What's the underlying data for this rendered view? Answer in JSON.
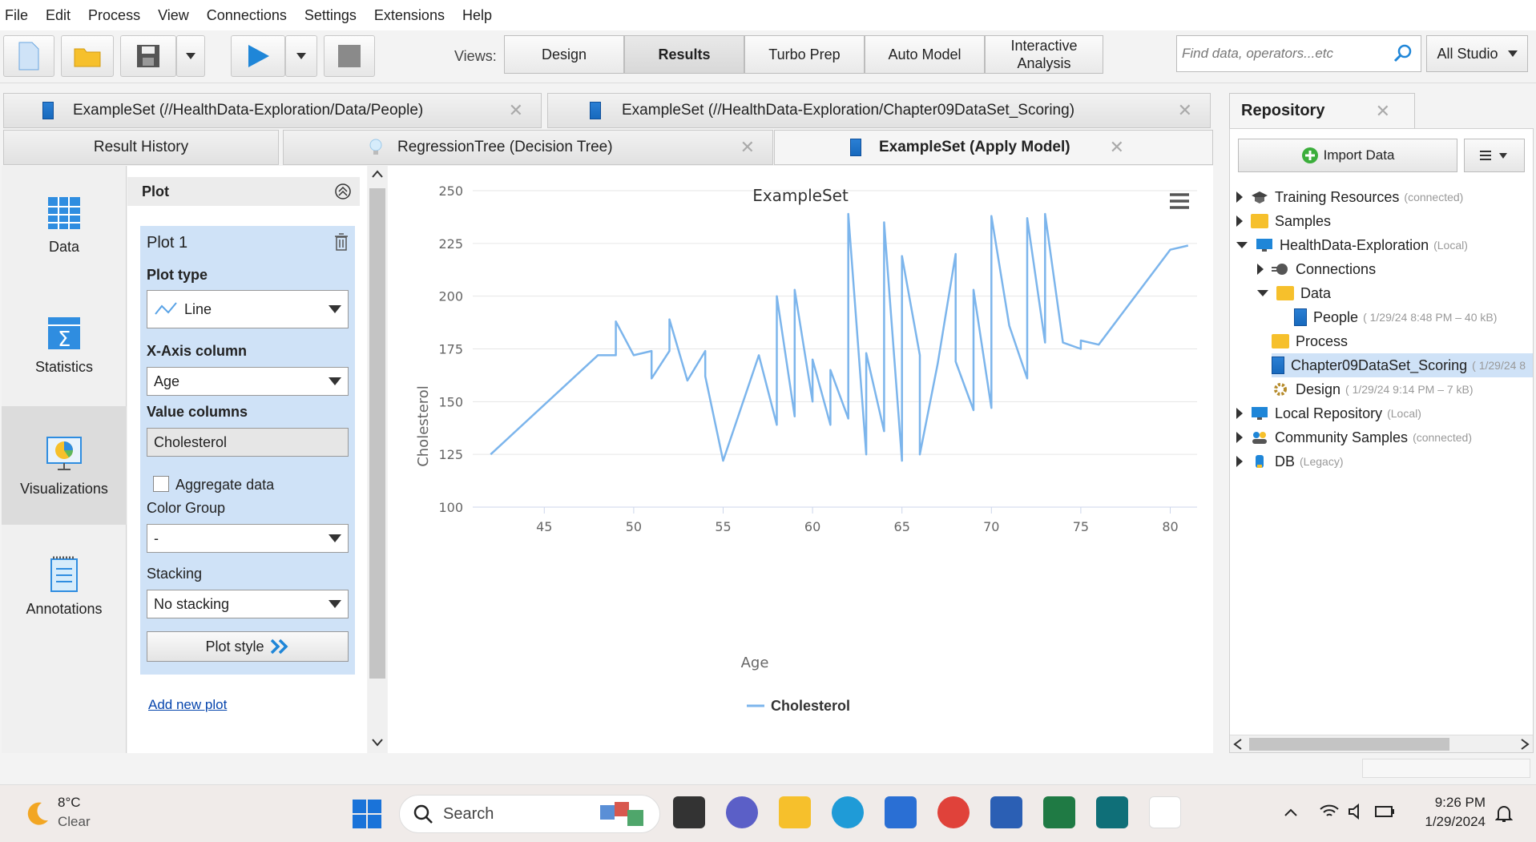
{
  "menu": [
    "File",
    "Edit",
    "Process",
    "View",
    "Connections",
    "Settings",
    "Extensions",
    "Help"
  ],
  "toolbar": {
    "views_label": "Views:",
    "views": [
      {
        "label": "Design"
      },
      {
        "label": "Results"
      },
      {
        "label": "Turbo Prep"
      },
      {
        "label": "Auto Model"
      },
      {
        "label": "Interactive\nAnalysis"
      }
    ],
    "search_placeholder": "Find data, operators...etc",
    "studio_label": "All Studio"
  },
  "tabs_row1": [
    {
      "label": "ExampleSet (//HealthData-Exploration/Data/People)"
    },
    {
      "label": "ExampleSet (//HealthData-Exploration/Chapter09DataSet_Scoring)"
    }
  ],
  "tabs_row2": [
    {
      "label": "Result History"
    },
    {
      "label": "RegressionTree (Decision Tree)"
    },
    {
      "label": "ExampleSet (Apply Model)"
    }
  ],
  "sidebar": [
    "Data",
    "Statistics",
    "Visualizations",
    "Annotations"
  ],
  "plot_panel": {
    "header": "Plot",
    "plot_name": "Plot 1",
    "plot_type_label": "Plot type",
    "plot_type": "Line",
    "x_axis_label": "X-Axis column",
    "x_axis": "Age",
    "value_columns_label": "Value columns",
    "value_column": "Cholesterol",
    "aggregate_label": "Aggregate data",
    "color_group_label": "Color Group",
    "color_group": "-",
    "stacking_label": "Stacking",
    "stacking": "No stacking",
    "plot_style": "Plot style",
    "add_new_plot": "Add new plot"
  },
  "chart_data": {
    "type": "line",
    "title": "ExampleSet",
    "xlabel": "Age",
    "ylabel": "Cholesterol",
    "xlim": [
      41,
      81.5
    ],
    "ylim": [
      100,
      250
    ],
    "xticks": [
      45,
      50,
      55,
      60,
      65,
      70,
      75,
      80
    ],
    "yticks": [
      100,
      125,
      150,
      175,
      200,
      225,
      250
    ],
    "legend_position": "bottom",
    "series": [
      {
        "name": "Cholesterol",
        "color": "#7cb5ec",
        "x": [
          42,
          48,
          49,
          49,
          50,
          51,
          51,
          52,
          52,
          53,
          54,
          54,
          55,
          57,
          58,
          58,
          59,
          59,
          60,
          60,
          61,
          61,
          62,
          62,
          63,
          63,
          64,
          64,
          65,
          65,
          66,
          66,
          67,
          68,
          68,
          69,
          69,
          70,
          70,
          71,
          72,
          72,
          73,
          73,
          74,
          75,
          75,
          76,
          80,
          81
        ],
        "y": [
          125,
          172,
          172,
          188,
          172,
          174,
          161,
          174,
          189,
          160,
          174,
          162,
          122,
          172,
          139,
          200,
          143,
          203,
          150,
          170,
          139,
          165,
          142,
          239,
          125,
          173,
          136,
          235,
          122,
          219,
          172,
          125,
          168,
          220,
          169,
          146,
          203,
          147,
          238,
          186,
          161,
          237,
          178,
          239,
          178,
          175,
          179,
          177,
          222,
          224
        ]
      }
    ]
  },
  "repository": {
    "title": "Repository",
    "import_label": "Import Data",
    "items": [
      {
        "label": "Training Resources",
        "meta": "(connected)"
      },
      {
        "label": "Samples",
        "meta": ""
      },
      {
        "label": "HealthData-Exploration",
        "meta": "(Local)"
      },
      {
        "label": "Connections",
        "meta": ""
      },
      {
        "label": "Data",
        "meta": ""
      },
      {
        "label": "People",
        "meta": "( 1/29/24 8:48 PM – 40 kB)"
      },
      {
        "label": "Process",
        "meta": ""
      },
      {
        "label": "Chapter09DataSet_Scoring",
        "meta": "( 1/29/24 8"
      },
      {
        "label": "Design",
        "meta": "( 1/29/24 9:14 PM – 7 kB)"
      },
      {
        "label": "Local Repository",
        "meta": "(Local)"
      },
      {
        "label": "Community Samples",
        "meta": "(connected)"
      },
      {
        "label": "DB",
        "meta": "(Legacy)"
      }
    ]
  },
  "taskbar": {
    "temp": "8°C",
    "weather": "Clear",
    "search": "Search",
    "time": "9:26 PM",
    "date": "1/29/2024"
  }
}
